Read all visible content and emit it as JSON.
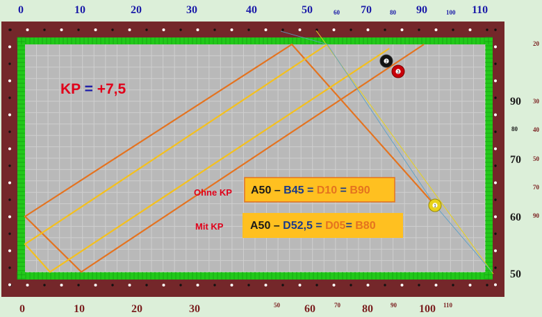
{
  "top_scale": {
    "big": [
      "0",
      "10",
      "20",
      "30",
      "40",
      "50",
      "70",
      "90",
      "110"
    ],
    "small": [
      "60",
      "80",
      "100"
    ],
    "color": "#1a1aa8"
  },
  "bottom_scale": {
    "big": [
      "0",
      "10",
      "20",
      "30",
      "60",
      "80",
      "100"
    ],
    "small": [
      "50",
      "70",
      "90",
      "110"
    ],
    "color": "#7a1f1f"
  },
  "right_scale": {
    "big": [
      "90",
      "70",
      "60",
      "50"
    ],
    "small_col1": [
      "80"
    ],
    "small_col2": [
      "20",
      "30",
      "40",
      "50",
      "70",
      "90"
    ]
  },
  "kp_formula": {
    "kp": "KP",
    "equals": " = ",
    "value": "+7,5"
  },
  "ohne_kp": {
    "label": "Ohne KP",
    "a": "A50",
    "dash": " – ",
    "b": "B45",
    "eq1": " = ",
    "d": "D10",
    "eq2": " = ",
    "e": "B90"
  },
  "mit_kp": {
    "label": "Mit KP",
    "a": "A50",
    "dash": " – ",
    "b": "D52,5",
    "eq1": " = ",
    "d": "D05",
    "eq2": "= ",
    "e": "B80"
  },
  "balls": [
    {
      "name": "ball-2",
      "number": "2",
      "color": "#111111"
    },
    {
      "name": "ball-3",
      "number": "3",
      "color": "#c8000a"
    },
    {
      "name": "ball-1",
      "number": "1",
      "color": "#e8d21a"
    }
  ],
  "colors": {
    "rail": "#74272a",
    "cloth": "#b9b9b9",
    "cushion": "#22c81a",
    "orange_path": "#e4731f",
    "yellow_path": "#f5c01c",
    "blue_text": "#1a1aa8",
    "red_text": "#e0001a",
    "box_fill": "#ffc020"
  }
}
